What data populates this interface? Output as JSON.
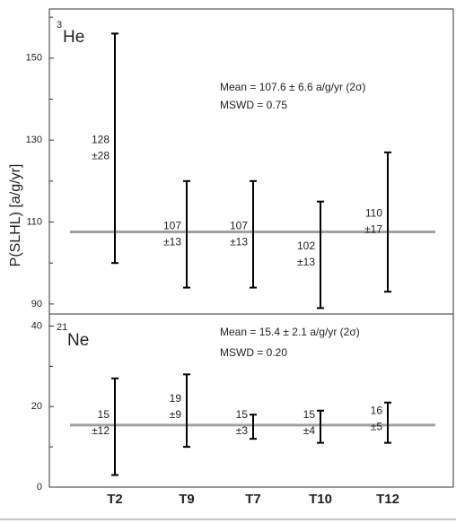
{
  "y_label": "P(SLHL) [a/g/yr]",
  "chart_data": [
    {
      "type": "errorbar",
      "isotope_mass": "3",
      "title": "He",
      "values": [
        128,
        107,
        107,
        102,
        110
      ],
      "errors": [
        28,
        13,
        13,
        13,
        17
      ],
      "error_labels": [
        "±28",
        "±13",
        "±13",
        "±13",
        "±17"
      ],
      "mean": 107.6,
      "annotations": [
        "Mean = 107.6 ± 6.6  a/g/yr (2σ)",
        "MSWD = 0.75"
      ],
      "ylim": [
        88,
        162
      ],
      "yticks": [
        90,
        110,
        130,
        150
      ],
      "minor_yticks": [
        100,
        120,
        140,
        160
      ],
      "color": "#000000",
      "mean_color": "#a0a0a0"
    },
    {
      "type": "errorbar",
      "isotope_mass": "21",
      "title": "Ne",
      "categories": [
        "T2",
        "T9",
        "T7",
        "T10",
        "T12"
      ],
      "values": [
        15,
        19,
        15,
        15,
        16
      ],
      "errors": [
        12,
        9,
        3,
        4,
        5
      ],
      "error_labels": [
        "±12",
        "±9",
        "±3",
        "±4",
        "±5"
      ],
      "mean": 15.4,
      "annotations": [
        "Mean = 15.4 ± 2.1 a/g/yr (2σ)",
        "MSWD = 0.20"
      ],
      "ylim": [
        0,
        43
      ],
      "yticks": [
        0,
        20,
        40
      ],
      "minor_yticks": [
        10,
        30
      ],
      "color": "#000000",
      "mean_color": "#a0a0a0"
    }
  ]
}
